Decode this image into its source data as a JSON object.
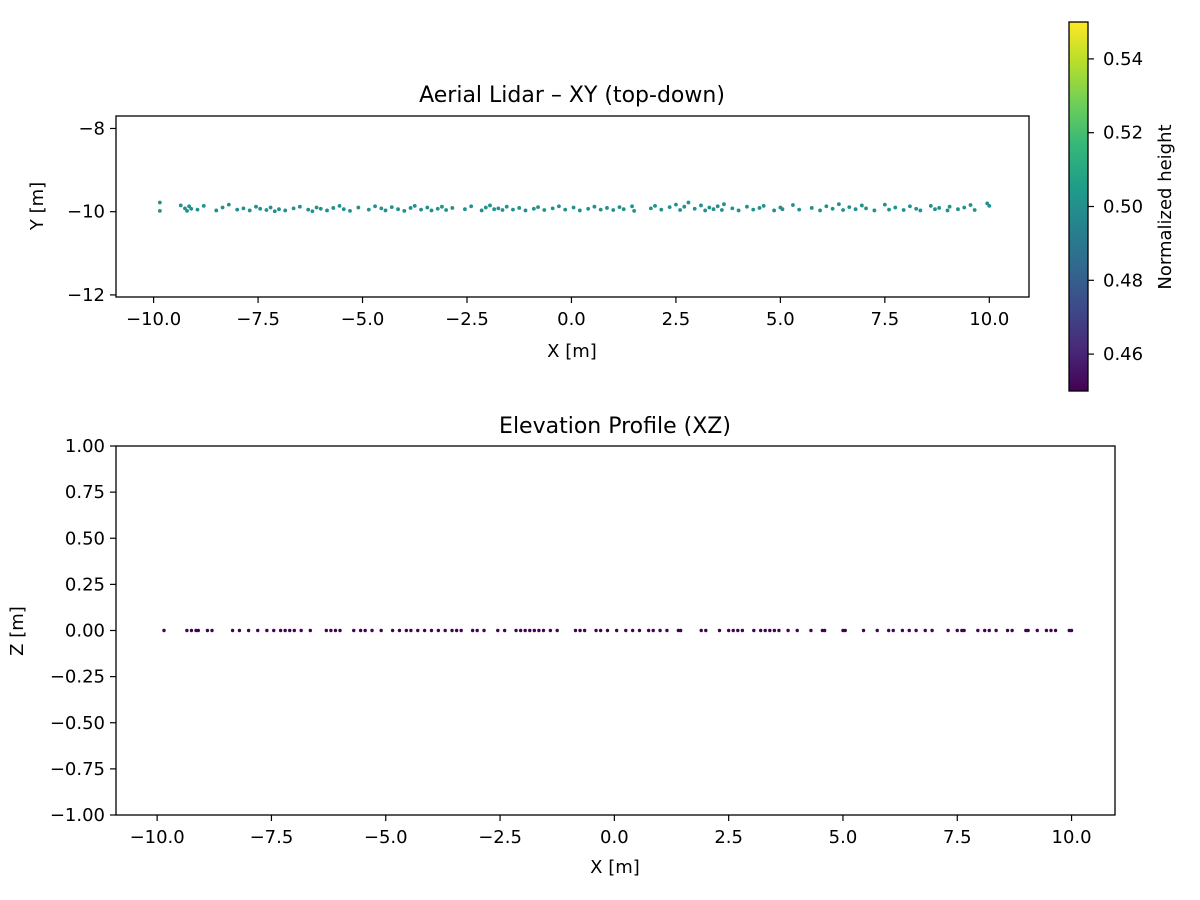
{
  "chart_data": [
    {
      "type": "scatter",
      "title": "Aerial Lidar – XY (top-down)",
      "xlabel": "X [m]",
      "ylabel": "Y [m]",
      "xlim": [
        -10.9,
        10.95
      ],
      "ylim": [
        -12.05,
        -7.7
      ],
      "xticks": [
        -10,
        -7.5,
        -5,
        -2.5,
        0,
        2.5,
        5,
        7.5,
        10
      ],
      "xtick_labels": [
        "−10.0",
        "−7.5",
        "−5.0",
        "−2.5",
        "0.0",
        "2.5",
        "5.0",
        "7.5",
        "10.0"
      ],
      "yticks": [
        -12,
        -10,
        -8
      ],
      "ytick_labels": [
        "−12",
        "−10",
        "−8"
      ],
      "grid": false,
      "point_color": "#21918c",
      "x": [
        -9.85,
        -9.85,
        -9.35,
        -9.25,
        -9.2,
        -9.15,
        -9.1,
        -8.95,
        -8.8,
        -8.5,
        -8.35,
        -8.2,
        -8.0,
        -7.85,
        -7.7,
        -7.55,
        -7.45,
        -7.3,
        -7.2,
        -7.1,
        -7.0,
        -6.85,
        -6.65,
        -6.5,
        -6.3,
        -6.2,
        -6.1,
        -6.0,
        -5.85,
        -5.7,
        -5.55,
        -5.45,
        -5.3,
        -5.1,
        -4.85,
        -4.7,
        -4.55,
        -4.45,
        -4.3,
        -4.15,
        -4.0,
        -3.85,
        -3.75,
        -3.6,
        -3.45,
        -3.35,
        -3.2,
        -3.1,
        -3.0,
        -2.85,
        -2.55,
        -2.4,
        -2.15,
        -2.05,
        -1.95,
        -1.85,
        -1.75,
        -1.65,
        -1.55,
        -1.4,
        -1.25,
        -1.1,
        -0.9,
        -0.8,
        -0.65,
        -0.45,
        -0.3,
        -0.15,
        0.05,
        0.2,
        0.4,
        0.55,
        0.7,
        0.85,
        1.0,
        1.15,
        1.25,
        1.45,
        1.5,
        1.9,
        2.0,
        2.15,
        2.35,
        2.5,
        2.6,
        2.7,
        2.8,
        2.95,
        3.1,
        3.2,
        3.3,
        3.4,
        3.5,
        3.6,
        3.65,
        3.85,
        4.0,
        4.2,
        4.35,
        4.5,
        4.6,
        4.85,
        5.0,
        5.05,
        5.3,
        5.45,
        5.75,
        5.95,
        6.1,
        6.25,
        6.4,
        6.5,
        6.65,
        6.8,
        6.95,
        7.05,
        7.25,
        7.5,
        7.6,
        7.75,
        7.95,
        8.1,
        8.25,
        8.35,
        8.6,
        8.7,
        8.8,
        9.0,
        9.05,
        9.25,
        9.4,
        9.55,
        9.65,
        9.95,
        10.0
      ],
      "y": [
        -9.78,
        -9.98,
        -9.85,
        -9.92,
        -9.98,
        -9.87,
        -9.93,
        -9.95,
        -9.86,
        -9.97,
        -9.9,
        -9.83,
        -9.95,
        -9.92,
        -9.97,
        -9.88,
        -9.93,
        -9.96,
        -9.9,
        -9.99,
        -9.94,
        -9.97,
        -9.92,
        -9.88,
        -9.95,
        -9.99,
        -9.9,
        -9.93,
        -9.97,
        -9.91,
        -9.86,
        -9.94,
        -9.98,
        -9.9,
        -9.95,
        -9.87,
        -9.92,
        -9.97,
        -9.89,
        -9.94,
        -9.98,
        -9.91,
        -9.86,
        -9.95,
        -9.9,
        -9.97,
        -9.93,
        -9.88,
        -9.96,
        -9.91,
        -9.94,
        -9.87,
        -9.97,
        -9.9,
        -9.85,
        -9.94,
        -9.92,
        -9.96,
        -9.88,
        -9.95,
        -9.91,
        -9.97,
        -9.93,
        -9.89,
        -9.96,
        -9.92,
        -9.87,
        -9.95,
        -9.9,
        -9.97,
        -9.93,
        -9.88,
        -9.95,
        -9.91,
        -9.96,
        -9.89,
        -9.94,
        -9.87,
        -9.98,
        -9.92,
        -9.86,
        -9.95,
        -9.89,
        -9.83,
        -9.96,
        -9.88,
        -9.78,
        -9.93,
        -9.85,
        -9.97,
        -9.9,
        -9.94,
        -9.87,
        -9.96,
        -9.82,
        -9.92,
        -9.97,
        -9.88,
        -9.95,
        -9.91,
        -9.86,
        -9.97,
        -9.9,
        -9.94,
        -9.84,
        -9.95,
        -9.91,
        -9.97,
        -9.87,
        -9.93,
        -9.82,
        -9.96,
        -9.89,
        -9.94,
        -9.85,
        -9.92,
        -9.97,
        -9.83,
        -9.95,
        -9.9,
        -9.96,
        -9.87,
        -9.93,
        -9.97,
        -9.86,
        -9.94,
        -9.91,
        -9.97,
        -9.88,
        -9.94,
        -9.9,
        -9.84,
        -9.96,
        -9.8,
        -9.86
      ]
    },
    {
      "type": "scatter",
      "title": "Elevation Profile (XZ)",
      "xlabel": "X [m]",
      "ylabel": "Z [m]",
      "xlim": [
        -10.9,
        10.95
      ],
      "ylim": [
        -1.0,
        1.0
      ],
      "xticks": [
        -10,
        -7.5,
        -5,
        -2.5,
        0,
        2.5,
        5,
        7.5,
        10
      ],
      "xtick_labels": [
        "−10.0",
        "−7.5",
        "−5.0",
        "−2.5",
        "0.0",
        "2.5",
        "5.0",
        "7.5",
        "10.0"
      ],
      "yticks": [
        1.0,
        0.75,
        0.5,
        0.25,
        0.0,
        -0.25,
        -0.5,
        -0.75,
        -1.0
      ],
      "ytick_labels": [
        "1.00",
        "0.75",
        "0.50",
        "0.25",
        "0.00",
        "−0.25",
        "−0.50",
        "−0.75",
        "−1.00"
      ],
      "grid": false,
      "point_color": "#440154",
      "x": [
        -9.85,
        -9.35,
        -9.25,
        -9.15,
        -9.1,
        -8.9,
        -8.8,
        -8.35,
        -8.2,
        -8.0,
        -7.8,
        -7.6,
        -7.45,
        -7.3,
        -7.2,
        -7.1,
        -7.0,
        -6.85,
        -6.65,
        -6.3,
        -6.2,
        -6.1,
        -6.0,
        -5.7,
        -5.55,
        -5.45,
        -5.3,
        -5.1,
        -4.85,
        -4.7,
        -4.55,
        -4.45,
        -4.3,
        -4.15,
        -4.0,
        -3.85,
        -3.7,
        -3.55,
        -3.45,
        -3.35,
        -3.1,
        -3.0,
        -2.85,
        -2.55,
        -2.4,
        -2.15,
        -2.05,
        -1.95,
        -1.85,
        -1.75,
        -1.65,
        -1.55,
        -1.4,
        -1.25,
        -0.85,
        -0.75,
        -0.65,
        -0.4,
        -0.3,
        -0.15,
        0.05,
        0.25,
        0.4,
        0.55,
        0.75,
        0.85,
        1.0,
        1.15,
        1.4,
        1.45,
        1.9,
        2.0,
        2.3,
        2.5,
        2.6,
        2.7,
        2.8,
        3.05,
        3.2,
        3.3,
        3.4,
        3.5,
        3.6,
        3.8,
        4.0,
        4.3,
        4.55,
        4.6,
        5.0,
        5.05,
        5.45,
        5.75,
        6.0,
        6.1,
        6.3,
        6.45,
        6.6,
        6.8,
        6.95,
        7.3,
        7.5,
        7.6,
        7.65,
        7.95,
        8.1,
        8.2,
        8.35,
        8.6,
        8.7,
        9.0,
        9.05,
        9.25,
        9.45,
        9.55,
        9.65,
        9.95,
        10.0
      ],
      "y": [
        0,
        0,
        0,
        0,
        0,
        0,
        0,
        0,
        0,
        0,
        0,
        0,
        0,
        0,
        0,
        0,
        0,
        0,
        0,
        0,
        0,
        0,
        0,
        0,
        0,
        0,
        0,
        0,
        0,
        0,
        0,
        0,
        0,
        0,
        0,
        0,
        0,
        0,
        0,
        0,
        0,
        0,
        0,
        0,
        0,
        0,
        0,
        0,
        0,
        0,
        0,
        0,
        0,
        0,
        0,
        0,
        0,
        0,
        0,
        0,
        0,
        0,
        0,
        0,
        0,
        0,
        0,
        0,
        0,
        0,
        0,
        0,
        0,
        0,
        0,
        0,
        0,
        0,
        0,
        0,
        0,
        0,
        0,
        0,
        0,
        0,
        0,
        0,
        0,
        0,
        0,
        0,
        0,
        0,
        0,
        0,
        0,
        0,
        0,
        0,
        0,
        0,
        0,
        0,
        0,
        0,
        0,
        0,
        0,
        0,
        0,
        0,
        0,
        0,
        0,
        0,
        0
      ]
    }
  ],
  "colorbar": {
    "label": "Normalized height",
    "range": [
      0.45,
      0.55
    ],
    "ticks": [
      0.46,
      0.48,
      0.5,
      0.52,
      0.54
    ],
    "tick_labels": [
      "0.46",
      "0.48",
      "0.50",
      "0.52",
      "0.54"
    ],
    "colormap": [
      "#440154",
      "#482878",
      "#3e4989",
      "#31688e",
      "#26828e",
      "#1f9e89",
      "#35b779",
      "#6ece58",
      "#b5de2b",
      "#fde725"
    ]
  }
}
